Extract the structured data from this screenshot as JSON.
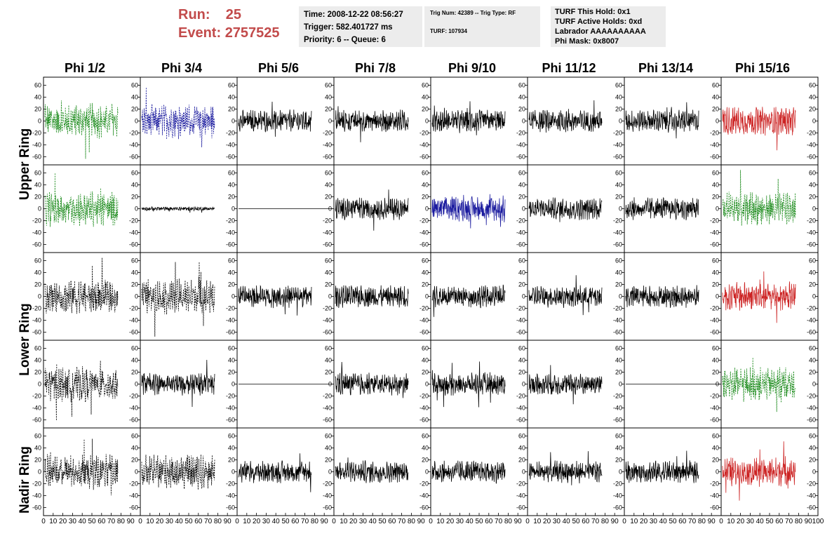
{
  "header": {
    "run_label": "Run:",
    "run_value": "25",
    "event_label": "Event:",
    "event_value": "2757525"
  },
  "info_box_1": {
    "time": "Time: 2008-12-22 08:56:27",
    "trigger": "Trigger: 582.401727 ms",
    "priority": "Priority: 6 -- Queue: 6"
  },
  "info_box_2": {
    "trig": "Trig Num: 42389 -- Trig Type: RF",
    "turf": "TURF: 107934"
  },
  "info_box_3": {
    "this_hold": "TURF This Hold: 0x1",
    "active_holds": "TURF Active Holds: 0xd",
    "labrador": "Labrador AAAAAAAAAA",
    "phi_mask": "Phi Mask: 0x8007"
  },
  "columns": [
    "Phi 1/2",
    "Phi 3/4",
    "Phi 5/6",
    "Phi 7/8",
    "Phi 9/10",
    "Phi 11/12",
    "Phi 13/14",
    "Phi 15/16"
  ],
  "row_labels": {
    "upper": "Upper Ring",
    "lower": "Lower Ring",
    "nadir": "Nadir Ring"
  },
  "colors": {
    "black": "#000000",
    "green": "#1a8a1a",
    "blue": "#1a1a9e",
    "red": "#cc2222",
    "header_red": "#c24b4b",
    "info_bg": "#ececec"
  },
  "chart_data": {
    "type": "line",
    "layout": "grid of 5 rows x 8 columns of waveform panels",
    "ylim": [
      -70,
      70
    ],
    "y_ticks": [
      -60,
      -40,
      -20,
      0,
      20,
      40,
      60
    ],
    "xlim": [
      0,
      100
    ],
    "x_ticks": [
      0,
      10,
      20,
      30,
      40,
      50,
      60,
      70,
      80,
      90,
      100
    ],
    "panels": [
      [
        "green-dashed",
        "blue-dashed",
        "black",
        "black",
        "black",
        "black",
        "black",
        "red"
      ],
      [
        "green-dashed",
        "black-small",
        "flat",
        "black",
        "blue",
        "black",
        "black",
        "green-dashed"
      ],
      [
        "black-dashed",
        "black-dashed",
        "black",
        "black",
        "black",
        "black",
        "black",
        "red"
      ],
      [
        "black-dashed",
        "black",
        "flat",
        "black",
        "black",
        "black",
        "flat",
        "green-dashed"
      ],
      [
        "black-dashed",
        "black-dashed",
        "black",
        "black",
        "black",
        "black",
        "black",
        "red"
      ]
    ]
  }
}
